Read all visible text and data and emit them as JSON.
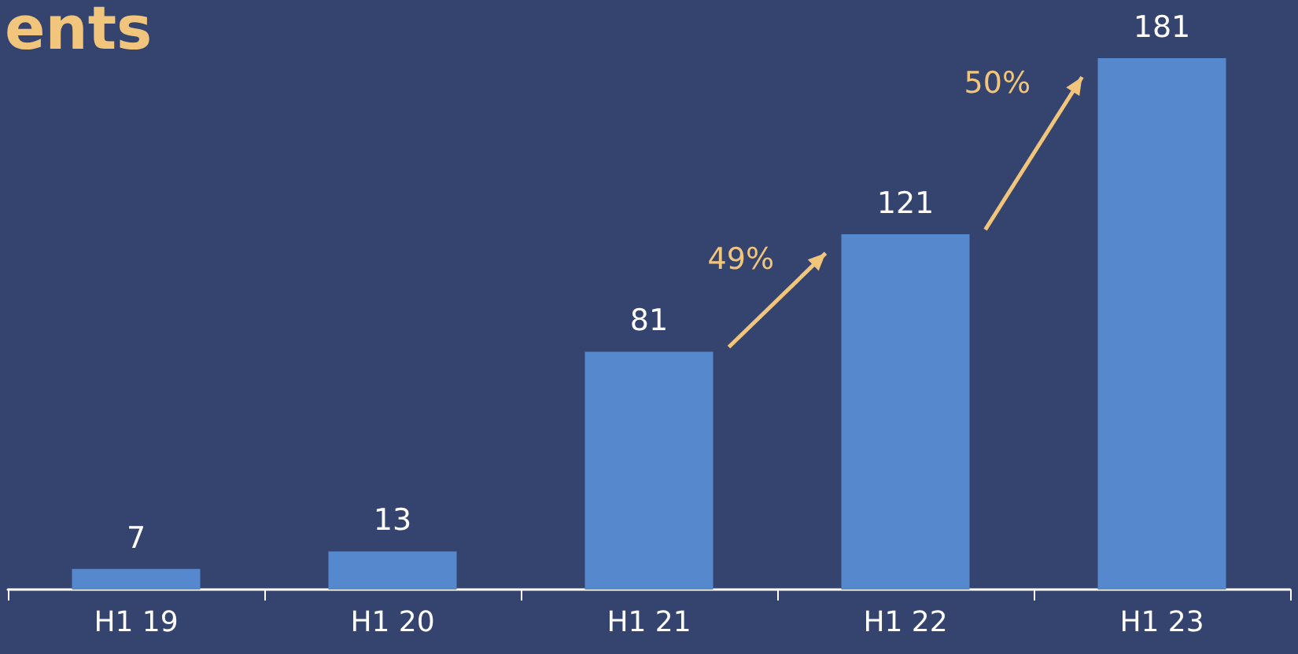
{
  "chart_data": {
    "type": "bar",
    "title": "ents",
    "categories": [
      "H1 19",
      "H1 20",
      "H1 21",
      "H1 22",
      "H1 23"
    ],
    "values": [
      7,
      13,
      81,
      121,
      181
    ],
    "color": "#5588cc",
    "data_labels": true,
    "annotations": [
      "49%",
      "50%"
    ]
  }
}
